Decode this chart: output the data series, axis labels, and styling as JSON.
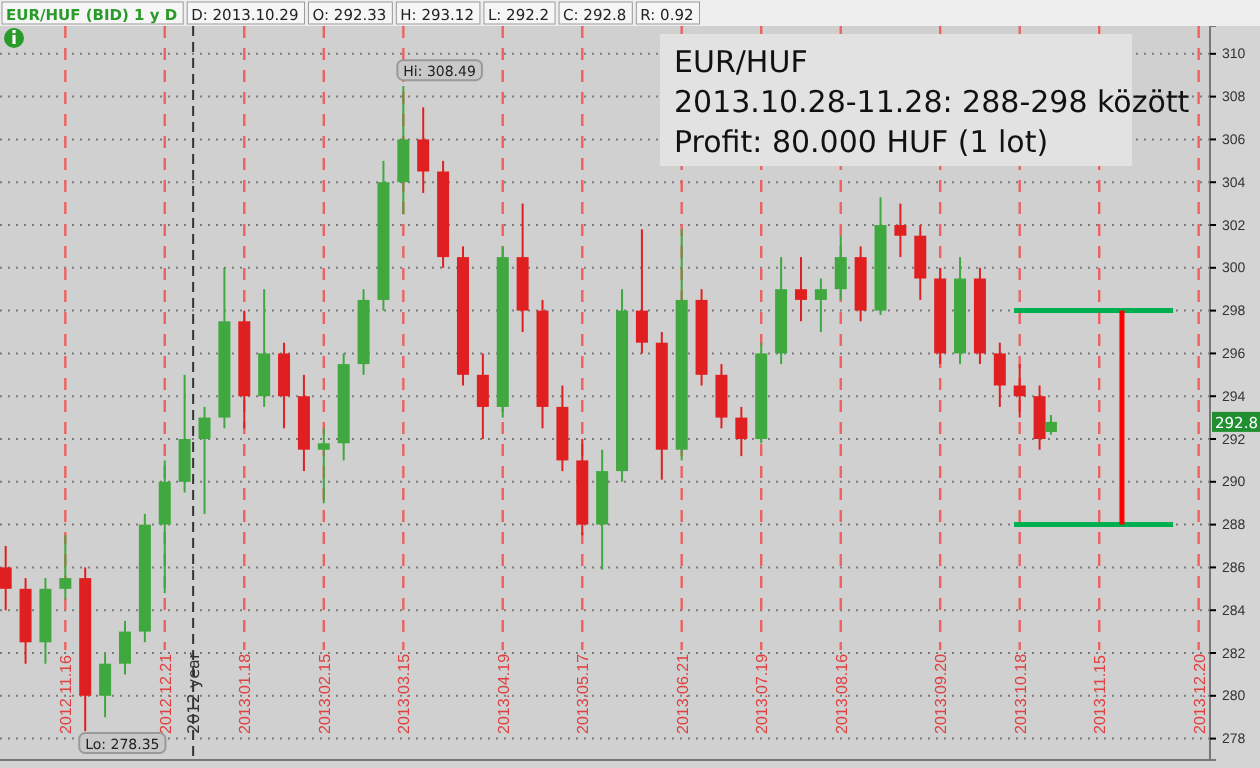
{
  "chart_data": {
    "type": "candlestick",
    "title": "EUR/HUF",
    "subtitle": "2013.10.28-11.28:  288-298 között",
    "xlim": [
      "2012-10-24",
      "2013-12-24"
    ],
    "ylim": [
      277,
      311.3
    ],
    "xticks": [
      {
        "value": "2012-11-16",
        "label": "2012.11.16"
      },
      {
        "value": "2012-12-21",
        "label": "2012.12.21"
      },
      {
        "value": "2013-01-18",
        "label": "2013.01.18"
      },
      {
        "value": "2013-02-15",
        "label": "2013.02.15"
      },
      {
        "value": "2013-03-15",
        "label": "2013.03.15"
      },
      {
        "value": "2013-04-19",
        "label": "2013.04.19"
      },
      {
        "value": "2013-05-17",
        "label": "2013.05.17"
      },
      {
        "value": "2013-06-21",
        "label": "2013.06.21"
      },
      {
        "value": "2013-07-19",
        "label": "2013.07.19"
      },
      {
        "value": "2013-08-16",
        "label": "2013.08.16"
      },
      {
        "value": "2013-09-20",
        "label": "2013.09.20"
      },
      {
        "value": "2013-10-18",
        "label": "2013.10.18"
      },
      {
        "value": "2013-11-15",
        "label": "2013.11.15"
      },
      {
        "value": "2013-12-20",
        "label": "2013.12.20"
      }
    ],
    "yticks": [
      278,
      280,
      282,
      284,
      286,
      288,
      290,
      292,
      294,
      296,
      298,
      300,
      302,
      304,
      306,
      308,
      310
    ],
    "grid": true,
    "ref_lines": [
      {
        "axis": "x",
        "value": "2012-12-31",
        "label": "2012 year",
        "color": "#333333",
        "line_style": "dashed"
      }
    ],
    "annotations": [
      "EUR/HUF (BID) 1 y D",
      "D: 2013.10.29",
      "O: 292.33",
      "H: 293.12",
      "L: 292.2",
      "C: 292.8",
      "R: 0.92",
      "Profit: 80.000 HUF (1 lot)",
      "292.8",
      {
        "text": "Hi: 308.49",
        "x": "2013-03-15",
        "y": 308.49
      },
      {
        "text": "Lo: 278.35",
        "x": "2012-11-23",
        "y": 278.35
      }
    ],
    "x": [
      "2012-10-26",
      "2012-11-02",
      "2012-11-09",
      "2012-11-16",
      "2012-11-23",
      "2012-11-30",
      "2012-12-07",
      "2012-12-14",
      "2012-12-21",
      "2012-12-28",
      "2013-01-04",
      "2013-01-11",
      "2013-01-18",
      "2013-01-25",
      "2013-02-01",
      "2013-02-08",
      "2013-02-15",
      "2013-02-22",
      "2013-03-01",
      "2013-03-08",
      "2013-03-15",
      "2013-03-22",
      "2013-03-29",
      "2013-04-05",
      "2013-04-12",
      "2013-04-19",
      "2013-04-26",
      "2013-05-03",
      "2013-05-10",
      "2013-05-17",
      "2013-05-24",
      "2013-05-31",
      "2013-06-07",
      "2013-06-14",
      "2013-06-21",
      "2013-06-28",
      "2013-07-05",
      "2013-07-12",
      "2013-07-19",
      "2013-07-26",
      "2013-08-02",
      "2013-08-09",
      "2013-08-16",
      "2013-08-23",
      "2013-08-30",
      "2013-09-06",
      "2013-09-13",
      "2013-09-20",
      "2013-09-27",
      "2013-10-04",
      "2013-10-11",
      "2013-10-18",
      "2013-10-25",
      "2013-10-29"
    ],
    "ohlc": [
      [
        286,
        287,
        284,
        285
      ],
      [
        285,
        285.5,
        281.5,
        282.5
      ],
      [
        282.5,
        285.5,
        281.5,
        285
      ],
      [
        285,
        287.5,
        284.5,
        285.5
      ],
      [
        285.5,
        286,
        278.35,
        280
      ],
      [
        280,
        282,
        279,
        281.5
      ],
      [
        281.5,
        283.5,
        281,
        283
      ],
      [
        283,
        288.5,
        282.5,
        288
      ],
      [
        288,
        291,
        284.8,
        290
      ],
      [
        290,
        295,
        289.5,
        292
      ],
      [
        292,
        293.5,
        288.5,
        293
      ],
      [
        293,
        300,
        292.5,
        297.5
      ],
      [
        297.5,
        298,
        292.5,
        294
      ],
      [
        294,
        299,
        293.5,
        296
      ],
      [
        296,
        296.5,
        292.5,
        294
      ],
      [
        294,
        295,
        290.5,
        291.5
      ],
      [
        291.5,
        292.5,
        289,
        291.8
      ],
      [
        291.8,
        296,
        291,
        295.5
      ],
      [
        295.5,
        299,
        295,
        298.5
      ],
      [
        298.5,
        305,
        298,
        304
      ],
      [
        304,
        308.49,
        302.5,
        306
      ],
      [
        306,
        307.5,
        303.5,
        304.5
      ],
      [
        304.5,
        305,
        300,
        300.5
      ],
      [
        300.5,
        301,
        294.5,
        295
      ],
      [
        295,
        296,
        292,
        293.5
      ],
      [
        293.5,
        301,
        293,
        300.5
      ],
      [
        300.5,
        303,
        297,
        298
      ],
      [
        298,
        298.5,
        292.5,
        293.5
      ],
      [
        293.5,
        294.5,
        290.5,
        291
      ],
      [
        291,
        292,
        287.5,
        288
      ],
      [
        288,
        291.5,
        285.9,
        290.5
      ],
      [
        290.5,
        299,
        290,
        298
      ],
      [
        298,
        301.8,
        296,
        296.5
      ],
      [
        296.5,
        297,
        290.1,
        291.5
      ],
      [
        291.5,
        301.8,
        291,
        298.5
      ],
      [
        298.5,
        299,
        294.5,
        295
      ],
      [
        295,
        295.5,
        292.5,
        293
      ],
      [
        293,
        293.5,
        291.2,
        292
      ],
      [
        292,
        296.5,
        291.8,
        296
      ],
      [
        296,
        300.5,
        295.5,
        299
      ],
      [
        299,
        300.5,
        297.5,
        298.5
      ],
      [
        298.5,
        299.5,
        297,
        299
      ],
      [
        299,
        301.5,
        298.5,
        300.5
      ],
      [
        300.5,
        301,
        297.5,
        298
      ],
      [
        298,
        303.3,
        297.8,
        302
      ],
      [
        302,
        303,
        300.5,
        301.5
      ],
      [
        301.5,
        302,
        298.5,
        299.5
      ],
      [
        299.5,
        300,
        295.5,
        296
      ],
      [
        296,
        300.5,
        295.5,
        299.5
      ],
      [
        299.5,
        300,
        295.5,
        296
      ],
      [
        296,
        296.5,
        293.5,
        294.5
      ],
      [
        294.5,
        295.5,
        293,
        294
      ],
      [
        294,
        294.5,
        291.5,
        292
      ],
      [
        292.33,
        293.12,
        292.2,
        292.8
      ]
    ],
    "colors": [
      "#e02020",
      "#e02020",
      "#3fa83f",
      "#3fa83f",
      "#e02020",
      "#3fa83f",
      "#3fa83f",
      "#3fa83f",
      "#3fa83f",
      "#3fa83f",
      "#3fa83f",
      "#3fa83f",
      "#e02020",
      "#3fa83f",
      "#e02020",
      "#e02020",
      "#3fa83f",
      "#3fa83f",
      "#3fa83f",
      "#3fa83f",
      "#3fa83f",
      "#e02020",
      "#e02020",
      "#e02020",
      "#e02020",
      "#3fa83f",
      "#e02020",
      "#e02020",
      "#e02020",
      "#e02020",
      "#3fa83f",
      "#3fa83f",
      "#e02020",
      "#e02020",
      "#3fa83f",
      "#e02020",
      "#e02020",
      "#e02020",
      "#3fa83f",
      "#3fa83f",
      "#e02020",
      "#3fa83f",
      "#3fa83f",
      "#e02020",
      "#3fa83f",
      "#e02020",
      "#e02020",
      "#e02020",
      "#3fa83f",
      "#e02020",
      "#e02020",
      "#e02020",
      "#e02020",
      "#3fa83f"
    ],
    "series": [
      {
        "type": "line",
        "color": "#00b050",
        "x": [
          "2013-10-16",
          "2013-12-11"
        ],
        "values": [
          298,
          298
        ]
      },
      {
        "type": "line",
        "color": "#00b050",
        "x": [
          "2013-10-16",
          "2013-12-11"
        ],
        "values": [
          288,
          288
        ]
      },
      {
        "type": "line",
        "color": "#ff0000",
        "x": [
          "2013-11-23",
          "2013-11-23"
        ],
        "values": [
          288,
          298
        ]
      }
    ]
  }
}
